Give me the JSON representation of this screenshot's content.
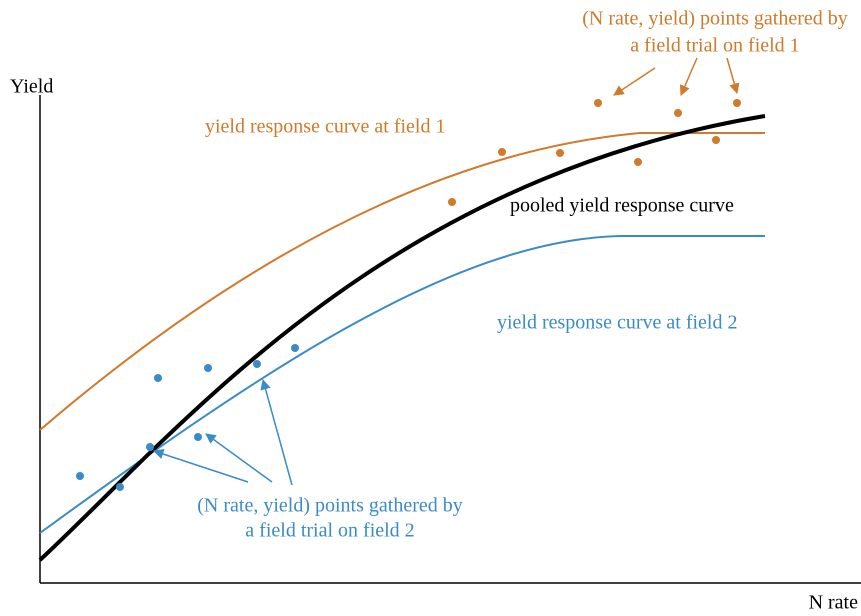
{
  "axes": {
    "y_label": "Yield",
    "x_label": "N rate"
  },
  "curves": {
    "field1": "yield response curve at field 1",
    "pooled": "pooled yield response curve",
    "field2": "yield response curve at field 2"
  },
  "annotations": {
    "field1": [
      "(N rate, yield) points gathered by",
      "a field trial on field 1"
    ],
    "field2": [
      "(N rate, yield) points gathered by",
      "a field trial on field 2"
    ]
  }
}
